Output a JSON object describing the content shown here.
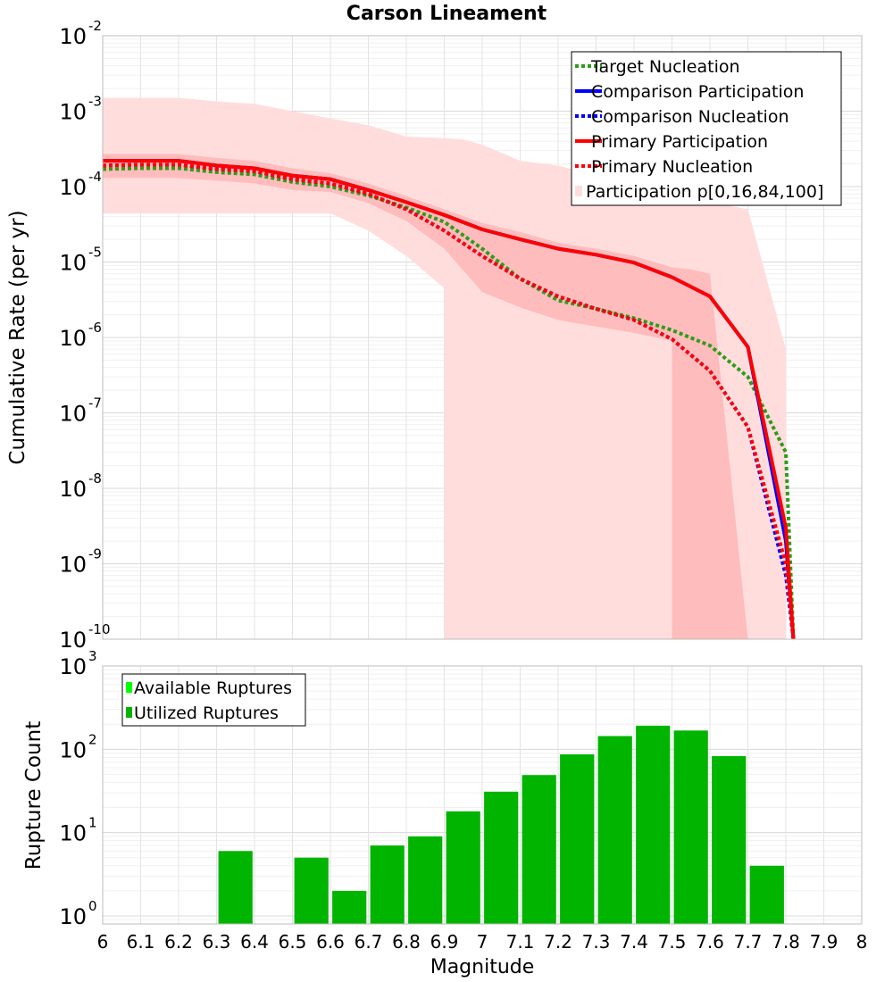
{
  "chart_data": [
    {
      "type": "line",
      "title": "Carson Lineament",
      "xlabel": "",
      "ylabel": "Cumulative Rate (per yr)",
      "xlim": [
        6,
        8
      ],
      "ylim": [
        1e-10,
        0.01
      ],
      "yscale": "log",
      "grid": true,
      "legend_position": "top-right",
      "x": [
        6.0,
        6.1,
        6.2,
        6.3,
        6.4,
        6.5,
        6.6,
        6.7,
        6.8,
        6.9,
        7.0,
        7.1,
        7.2,
        7.3,
        7.4,
        7.5,
        7.6,
        7.7,
        7.8,
        7.82
      ],
      "series": [
        {
          "name": "Target Nucleation",
          "style": "dotted",
          "color": "#2e9b1a",
          "values": [
            0.00017,
            0.000175,
            0.000175,
            0.000155,
            0.000145,
            0.000115,
            0.0001,
            7.6e-05,
            5.3e-05,
            3.4e-05,
            1.5e-05,
            6e-06,
            3.1e-06,
            2.4e-06,
            1.8e-06,
            1.25e-06,
            7.8e-07,
            3e-07,
            3e-08,
            1e-10
          ]
        },
        {
          "name": "Comparison Participation",
          "style": "solid",
          "color": "#0000ff",
          "values": [
            0.00022,
            0.00022,
            0.00022,
            0.00019,
            0.000175,
            0.00014,
            0.000125,
            9e-05,
            6.2e-05,
            4.2e-05,
            2.7e-05,
            2e-05,
            1.5e-05,
            1.25e-05,
            9.8e-06,
            6.3e-06,
            3.5e-06,
            7.5e-07,
            2e-09,
            1e-10
          ]
        },
        {
          "name": "Comparison Nucleation",
          "style": "dotted",
          "color": "#0000ff",
          "values": [
            0.00019,
            0.000195,
            0.000195,
            0.00017,
            0.00016,
            0.000125,
            0.00011,
            8e-05,
            5e-05,
            2.6e-05,
            1.2e-05,
            6e-06,
            3.5e-06,
            2.4e-06,
            1.7e-06,
            9.5e-07,
            3.6e-07,
            6.5e-08,
            7e-10,
            1e-10
          ]
        },
        {
          "name": "Primary Participation",
          "style": "solid",
          "color": "#ff0000",
          "values": [
            0.00022,
            0.00022,
            0.00022,
            0.00019,
            0.000175,
            0.00014,
            0.000125,
            9e-05,
            6.2e-05,
            4.2e-05,
            2.7e-05,
            2e-05,
            1.5e-05,
            1.25e-05,
            9.8e-06,
            6.3e-06,
            3.5e-06,
            7.5e-07,
            3e-09,
            1e-10
          ]
        },
        {
          "name": "Primary Nucleation",
          "style": "dotted",
          "color": "#ff0000",
          "values": [
            0.00019,
            0.000195,
            0.000195,
            0.00017,
            0.00016,
            0.000125,
            0.00011,
            8e-05,
            5e-05,
            2.6e-05,
            1.2e-05,
            6e-06,
            3.5e-06,
            2.4e-06,
            1.7e-06,
            9.5e-07,
            3.6e-07,
            6.5e-08,
            1e-09,
            1e-10
          ]
        }
      ],
      "bands": [
        {
          "name": "Participation p[0,16,84,100]",
          "color": "#ffdddd",
          "x": [
            6.0,
            6.2,
            6.3,
            6.4,
            6.5,
            6.6,
            6.7,
            6.8,
            6.9,
            6.9,
            6.95,
            7.0,
            7.1,
            7.2,
            7.3,
            7.4,
            7.5,
            7.6,
            7.7,
            7.8,
            7.8
          ],
          "upper": [
            0.0015,
            0.0015,
            0.00135,
            0.00125,
            0.001,
            0.0008,
            0.00065,
            0.00046,
            0.00044,
            0.00044,
            0.00042,
            0.00036,
            0.00022,
            0.00019,
            0.00014,
            0.000105,
            8.3e-05,
            6.2e-05,
            5e-05,
            7e-07,
            1e-10
          ],
          "lower": [
            4.4e-05,
            4.4e-05,
            4.4e-05,
            4.4e-05,
            4.4e-05,
            4.4e-05,
            2.6e-05,
            1.2e-05,
            4.5e-06,
            1e-10,
            1e-10,
            1e-10,
            1e-10,
            1e-10,
            1e-10,
            1e-10,
            1e-10,
            1e-10,
            1e-10,
            1e-10,
            1e-10
          ]
        },
        {
          "name": "",
          "color": "#ffbcbc",
          "x": [
            6.0,
            6.2,
            6.3,
            6.4,
            6.5,
            6.6,
            6.7,
            6.8,
            6.9,
            7.0,
            7.1,
            7.2,
            7.3,
            7.4,
            7.5,
            7.5,
            7.55,
            7.6,
            7.7,
            7.7
          ],
          "upper": [
            0.00027,
            0.00027,
            0.00024,
            0.00022,
            0.000175,
            0.00015,
            0.00011,
            7.5e-05,
            5e-05,
            3.3e-05,
            2.5e-05,
            1.8e-05,
            1.5e-05,
            1.2e-05,
            8.5e-06,
            8.5e-06,
            8e-06,
            7e-06,
            1e-10,
            1e-10
          ],
          "lower": [
            0.00013,
            0.00013,
            0.00012,
            0.00011,
            9e-05,
            8.5e-05,
            6e-05,
            3.5e-05,
            1.5e-05,
            4e-06,
            2.5e-06,
            1.7e-06,
            1.4e-06,
            1.15e-06,
            9e-07,
            1e-10,
            1e-10,
            1e-10,
            1e-10,
            1e-10
          ]
        }
      ],
      "legend": [
        "Target Nucleation",
        "Comparison Participation",
        " Comparison Nucleation",
        "Primary Participation",
        " Primary Nucleation",
        "Participation p[0,16,84,100]"
      ],
      "x_ticks": [
        "6",
        "6.1",
        "6.2",
        "6.3",
        "6.4",
        "6.5",
        "6.6",
        "6.7",
        "6.8",
        "6.9",
        "7",
        "7.1",
        "7.2",
        "7.3",
        "7.4",
        "7.5",
        "7.6",
        "7.7",
        "7.8",
        "7.9",
        "8"
      ],
      "y_tick_exponents": [
        "-2",
        "-3",
        "-4",
        "-5",
        "-6",
        "-7",
        "-8",
        "-9",
        "-10"
      ]
    },
    {
      "type": "bar",
      "title": "",
      "xlabel": "Magnitude",
      "ylabel": "Rupture Count",
      "xlim": [
        6,
        8
      ],
      "ylim": [
        0.8,
        1000
      ],
      "yscale": "log",
      "grid": true,
      "legend_position": "top-left",
      "categories": [
        6.35,
        6.55,
        6.65,
        6.75,
        6.85,
        6.95,
        7.05,
        7.15,
        7.25,
        7.35,
        7.45,
        7.55,
        7.65,
        7.75
      ],
      "series": [
        {
          "name": "Available Ruptures",
          "color": "#00ff00",
          "values": [
            6,
            5,
            2,
            7,
            9,
            18,
            31,
            49,
            87,
            144,
            192,
            168,
            83,
            4
          ]
        },
        {
          "name": "Utilized Ruptures",
          "color": "#00b400",
          "values": [
            6,
            5,
            2,
            7,
            9,
            18,
            31,
            49,
            87,
            144,
            192,
            168,
            83,
            4
          ]
        }
      ],
      "bar_width": 0.09,
      "legend": [
        "Available Ruptures",
        "Utilized Ruptures"
      ],
      "x_ticks": [
        "6",
        "6.1",
        "6.2",
        "6.3",
        "6.4",
        "6.5",
        "6.6",
        "6.7",
        "6.8",
        "6.9",
        "7",
        "7.1",
        "7.2",
        "7.3",
        "7.4",
        "7.5",
        "7.6",
        "7.7",
        "7.8",
        "7.9",
        "8"
      ],
      "y_tick_exponents": [
        "3",
        "2",
        "1",
        "0"
      ]
    }
  ]
}
